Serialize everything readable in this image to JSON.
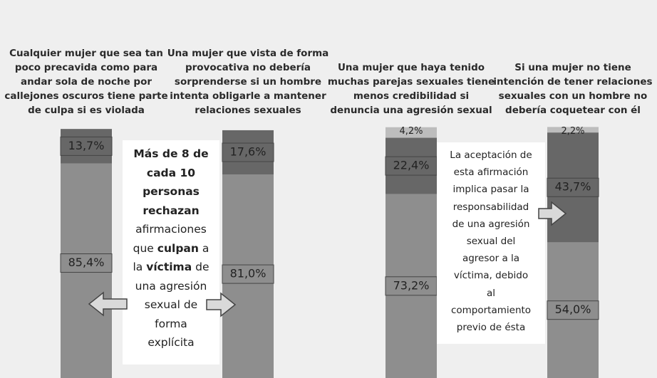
{
  "chart_data": {
    "type": "stacked_bar",
    "categories": [
      "Cualquier mujer que sea tan poco precavida como para andar sola de noche por callejones oscuros tiene parte de culpa si es violada",
      "Una mujer que vista de forma provocativa no debería sorprenderse si un hombre intenta obligarle a mantener relaciones sexuales",
      "Una mujer que haya tenido muchas parejas sexuales tiene menos credibilidad si denuncia una agresión sexual",
      "Si una mujer no tiene intención de tener relaciones sexuales con un hombre no debería coquetear con él"
    ],
    "series": [
      {
        "color": "#8e8e8e",
        "values": [
          85.4,
          81.0,
          73.2,
          54.0
        ],
        "value_labels": [
          "85,4%",
          "81,0%",
          "73,2%",
          "54,0%"
        ]
      },
      {
        "color": "#676767",
        "values": [
          13.7,
          17.6,
          22.4,
          43.7
        ],
        "value_labels": [
          "13,7%",
          "17,6%",
          "22,4%",
          "43,7%"
        ]
      },
      {
        "color": "#bdbdbd",
        "values": [
          null,
          null,
          4.2,
          2.2
        ],
        "value_labels": [
          null,
          null,
          "4,2%",
          "2,2%"
        ]
      }
    ],
    "ylim": [
      0,
      100
    ],
    "annotations": [
      {
        "lines": [
          [
            {
              "text": "Más de 8 de",
              "bold": true
            }
          ],
          [
            {
              "text": "cada 10",
              "bold": true
            }
          ],
          [
            {
              "text": "personas",
              "bold": true
            }
          ],
          [
            {
              "text": "rechazan",
              "bold": true
            }
          ],
          [
            {
              "text": "afirmaciones",
              "bold": false
            }
          ],
          [
            {
              "text": "que ",
              "bold": false
            },
            {
              "text": "culpan",
              "bold": true
            },
            {
              "text": " a",
              "bold": false
            }
          ],
          [
            {
              "text": "la ",
              "bold": false
            },
            {
              "text": "víctima",
              "bold": true
            },
            {
              "text": " de",
              "bold": false
            }
          ],
          [
            {
              "text": "una agresión",
              "bold": false
            }
          ],
          [
            {
              "text": "sexual de",
              "bold": false
            }
          ],
          [
            {
              "text": "forma",
              "bold": false
            }
          ],
          [
            {
              "text": "explícita",
              "bold": false
            }
          ]
        ]
      },
      {
        "lines": [
          [
            {
              "text": "La aceptación de",
              "bold": false
            }
          ],
          [
            {
              "text": "esta afirmación",
              "bold": false
            }
          ],
          [
            {
              "text": "implica pasar la",
              "bold": false
            }
          ],
          [
            {
              "text": "responsabilidad",
              "bold": false
            }
          ],
          [
            {
              "text": "de una agresión",
              "bold": false
            }
          ],
          [
            {
              "text": "sexual del",
              "bold": false
            }
          ],
          [
            {
              "text": "agresor a la",
              "bold": false
            }
          ],
          [
            {
              "text": "víctima, debido",
              "bold": false
            }
          ],
          [
            {
              "text": "al",
              "bold": false
            }
          ],
          [
            {
              "text": "comportamiento",
              "bold": false
            }
          ],
          [
            {
              "text": "previo de ésta",
              "bold": false
            }
          ]
        ]
      }
    ]
  }
}
